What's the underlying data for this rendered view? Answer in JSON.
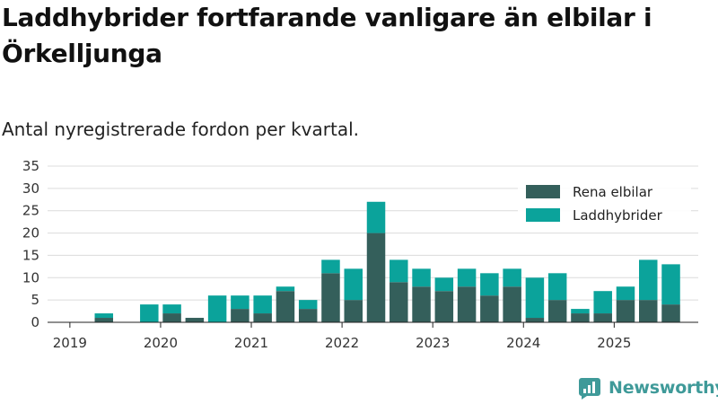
{
  "header": {
    "title": "Laddhybrider fortfarande vanligare än elbilar i Örkelljunga",
    "subtitle": "Antal nyregistrerade fordon per kvartal."
  },
  "chart_data": {
    "type": "bar",
    "stacked": true,
    "title": "Laddhybrider fortfarande vanligare än elbilar i Örkelljunga",
    "subtitle": "Antal nyregistrerade fordon per kvartal.",
    "xlabel": "",
    "ylabel": "",
    "ylim": [
      0,
      35
    ],
    "yticks": [
      0,
      5,
      10,
      15,
      20,
      25,
      30,
      35
    ],
    "xtick_labels": [
      "2019",
      "2020",
      "2021",
      "2022",
      "2023",
      "2024",
      "2025"
    ],
    "grid": true,
    "legend_position": "top-right",
    "categories": [
      "2019 Q1",
      "2019 Q2",
      "2019 Q3",
      "2019 Q4",
      "2020 Q1",
      "2020 Q2",
      "2020 Q3",
      "2020 Q4",
      "2021 Q1",
      "2021 Q2",
      "2021 Q3",
      "2021 Q4",
      "2022 Q1",
      "2022 Q2",
      "2022 Q3",
      "2022 Q4",
      "2023 Q1",
      "2023 Q2",
      "2023 Q3",
      "2023 Q4",
      "2024 Q1",
      "2024 Q2",
      "2024 Q3",
      "2024 Q4",
      "2025 Q1",
      "2025 Q2",
      "2025 Q3"
    ],
    "series": [
      {
        "name": "Rena elbilar",
        "color": "#345f5b",
        "values": [
          0,
          1,
          0,
          0,
          2,
          1,
          0,
          3,
          2,
          7,
          3,
          11,
          5,
          20,
          9,
          8,
          7,
          8,
          6,
          8,
          1,
          5,
          2,
          2,
          5,
          5,
          4
        ]
      },
      {
        "name": "Laddhybrider",
        "color": "#0ba39b",
        "values": [
          0,
          1,
          0,
          4,
          2,
          0,
          6,
          3,
          4,
          1,
          2,
          3,
          7,
          7,
          5,
          4,
          3,
          4,
          5,
          4,
          9,
          6,
          1,
          5,
          3,
          9,
          9
        ]
      }
    ]
  },
  "branding": {
    "logo_text": "Newsworthy",
    "logo_icon": "newsworthy-logo-icon",
    "color": "#3f9a99"
  }
}
